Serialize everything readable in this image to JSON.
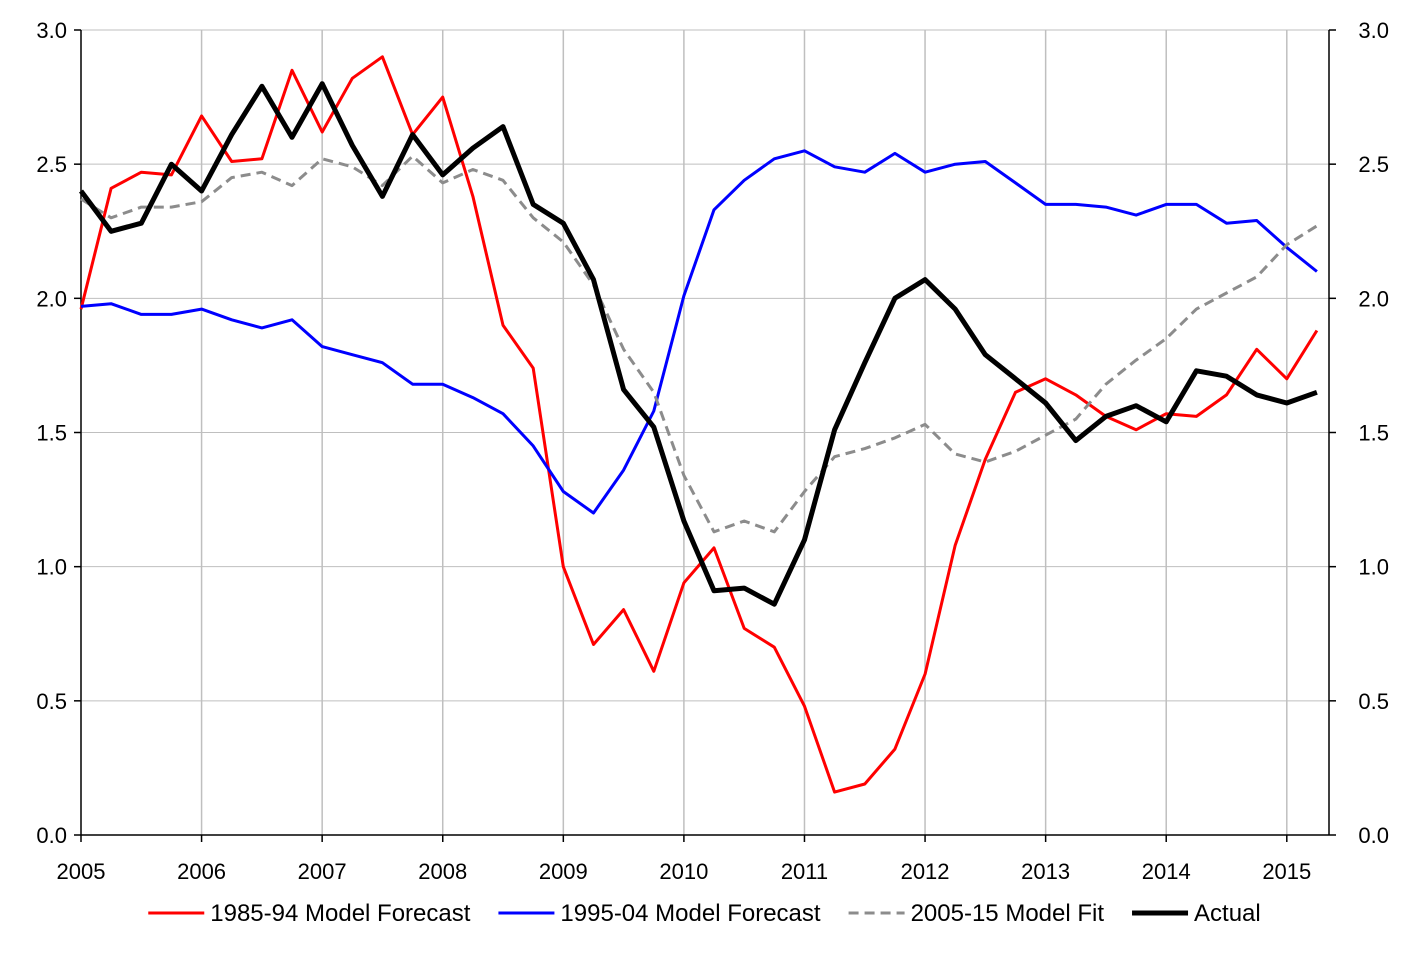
{
  "chart_data": {
    "type": "line",
    "x": [
      2005.0,
      2005.25,
      2005.5,
      2005.75,
      2006.0,
      2006.25,
      2006.5,
      2006.75,
      2007.0,
      2007.25,
      2007.5,
      2007.75,
      2008.0,
      2008.25,
      2008.5,
      2008.75,
      2009.0,
      2009.25,
      2009.5,
      2009.75,
      2010.0,
      2010.25,
      2010.5,
      2010.75,
      2011.0,
      2011.25,
      2011.5,
      2011.75,
      2012.0,
      2012.25,
      2012.5,
      2012.75,
      2013.0,
      2013.25,
      2013.5,
      2013.75,
      2014.0,
      2014.25,
      2014.5,
      2014.75,
      2015.0,
      2015.25
    ],
    "series": [
      {
        "name": "1985-94 Model Forecast",
        "color": "#ff0000",
        "dash": "solid",
        "width": 3,
        "values": [
          1.96,
          2.41,
          2.47,
          2.46,
          2.68,
          2.51,
          2.52,
          2.85,
          2.62,
          2.82,
          2.9,
          2.61,
          2.75,
          2.38,
          1.9,
          1.74,
          1.0,
          0.71,
          0.84,
          0.61,
          0.94,
          1.07,
          0.77,
          0.7,
          0.48,
          0.16,
          0.19,
          0.32,
          0.6,
          1.08,
          1.4,
          1.65,
          1.7,
          1.64,
          1.56,
          1.51,
          1.57,
          1.56,
          1.64,
          1.81,
          1.7,
          1.88
        ]
      },
      {
        "name": "1995-04 Model Forecast",
        "color": "#0000ff",
        "dash": "solid",
        "width": 3,
        "values": [
          1.97,
          1.98,
          1.94,
          1.94,
          1.96,
          1.92,
          1.89,
          1.92,
          1.82,
          1.79,
          1.76,
          1.68,
          1.68,
          1.63,
          1.57,
          1.45,
          1.28,
          1.2,
          1.36,
          1.58,
          2.01,
          2.33,
          2.44,
          2.52,
          2.55,
          2.49,
          2.47,
          2.54,
          2.47,
          2.5,
          2.51,
          2.43,
          2.35,
          2.35,
          2.34,
          2.31,
          2.35,
          2.35,
          2.28,
          2.29,
          2.19,
          2.1
        ]
      },
      {
        "name": "2005-15 Model Fit",
        "color": "#8c8c8c",
        "dash": "dashed",
        "width": 3,
        "values": [
          2.37,
          2.3,
          2.34,
          2.34,
          2.36,
          2.45,
          2.47,
          2.42,
          2.52,
          2.49,
          2.42,
          2.53,
          2.43,
          2.48,
          2.44,
          2.3,
          2.21,
          2.05,
          1.81,
          1.65,
          1.34,
          1.13,
          1.17,
          1.13,
          1.28,
          1.41,
          1.44,
          1.48,
          1.53,
          1.42,
          1.39,
          1.43,
          1.49,
          1.55,
          1.68,
          1.77,
          1.85,
          1.96,
          2.02,
          2.08,
          2.2,
          2.27
        ]
      },
      {
        "name": "Actual",
        "color": "#000000",
        "dash": "solid",
        "width": 5,
        "values": [
          2.4,
          2.25,
          2.28,
          2.5,
          2.4,
          2.61,
          2.79,
          2.6,
          2.8,
          2.57,
          2.38,
          2.61,
          2.46,
          2.56,
          2.64,
          2.35,
          2.28,
          2.07,
          1.66,
          1.52,
          1.17,
          0.91,
          0.92,
          0.86,
          1.1,
          1.51,
          1.76,
          2.0,
          2.07,
          1.96,
          1.79,
          1.7,
          1.61,
          1.47,
          1.56,
          1.6,
          1.54,
          1.73,
          1.71,
          1.64,
          1.61,
          1.65
        ]
      }
    ],
    "xlim": [
      2005,
      2015.35
    ],
    "ylim": [
      0,
      3
    ],
    "x_ticks": [
      "2005",
      "2006",
      "2007",
      "2008",
      "2009",
      "2010",
      "2011",
      "2012",
      "2013",
      "2014",
      "2015"
    ],
    "y_ticks": [
      "0.0",
      "0.5",
      "1.0",
      "1.5",
      "2.0",
      "2.5",
      "3.0"
    ],
    "y_axis_right_duplicate": true,
    "grid": "vertical and horizontal",
    "grid_color": "#bfbfbf",
    "legend_position": "bottom",
    "title": "",
    "xlabel": "",
    "ylabel": ""
  }
}
